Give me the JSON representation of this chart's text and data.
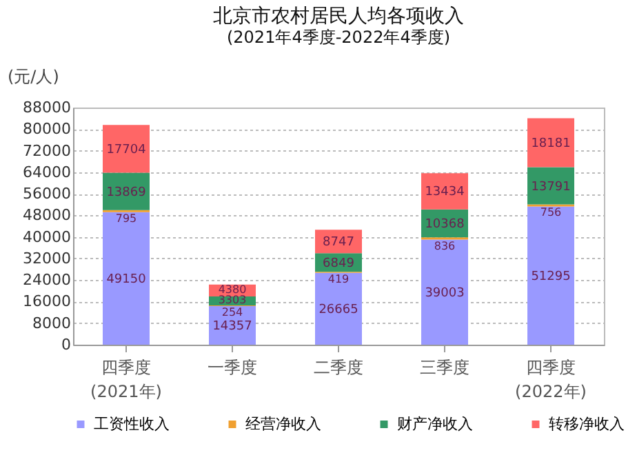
{
  "chart_data": {
    "type": "bar",
    "title": "北京市农村居民人均各项收入",
    "subtitle": "(2021年4季度-2022年4季度)",
    "ylabel": "(元/人)",
    "categories": [
      "四季度",
      "一季度",
      "二季度",
      "三季度",
      "四季度"
    ],
    "stacked": true,
    "series": [
      {
        "name": "工资性收入",
        "color": "#9999ff",
        "values": [
          49150,
          14357,
          26665,
          39003,
          51295
        ]
      },
      {
        "name": "经营净收入",
        "color": "#f0a030",
        "values": [
          795,
          254,
          419,
          836,
          756
        ]
      },
      {
        "name": "财产净收入",
        "color": "#339966",
        "values": [
          13869,
          3303,
          6849,
          10368,
          13791
        ]
      },
      {
        "name": "转移净收入",
        "color": "#ff6666",
        "values": [
          17704,
          4380,
          8747,
          13434,
          18181
        ]
      }
    ],
    "ylim": [
      0,
      88000
    ],
    "yticks": [
      0,
      8000,
      16000,
      24000,
      32000,
      40000,
      48000,
      56000,
      64000,
      72000,
      80000,
      88000
    ],
    "grid": "y",
    "legend": "bottom",
    "data_labels": true,
    "annotations": [
      "(2021年)",
      "(2022年)"
    ]
  }
}
